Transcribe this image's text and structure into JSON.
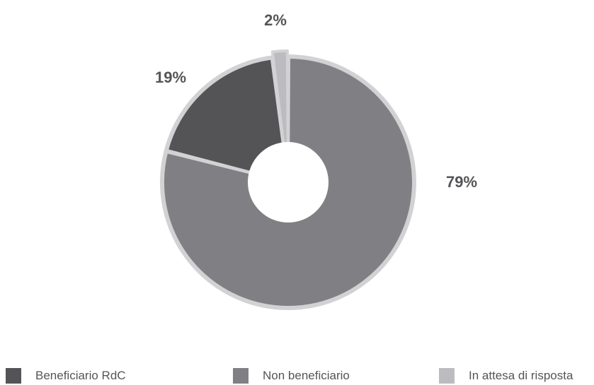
{
  "chart_data": {
    "type": "pie",
    "donut": true,
    "title": "",
    "slices": [
      {
        "name": "Non beneficiario",
        "value": 79,
        "label": "79%",
        "color": "#808084"
      },
      {
        "name": "Beneficiario RdC",
        "value": 19,
        "label": "19%",
        "color": "#545457"
      },
      {
        "name": "In attesa di risposta",
        "value": 2,
        "label": "2%",
        "color": "#bcbcc0"
      }
    ],
    "legend_position": "bottom",
    "legend": [
      {
        "label": "Beneficiario RdC",
        "color": "#545457"
      },
      {
        "label": "Non beneficiario",
        "color": "#808084"
      },
      {
        "label": "In attesa di risposta",
        "color": "#bcbcc0"
      }
    ],
    "outline_color": "#d2d2d4"
  }
}
